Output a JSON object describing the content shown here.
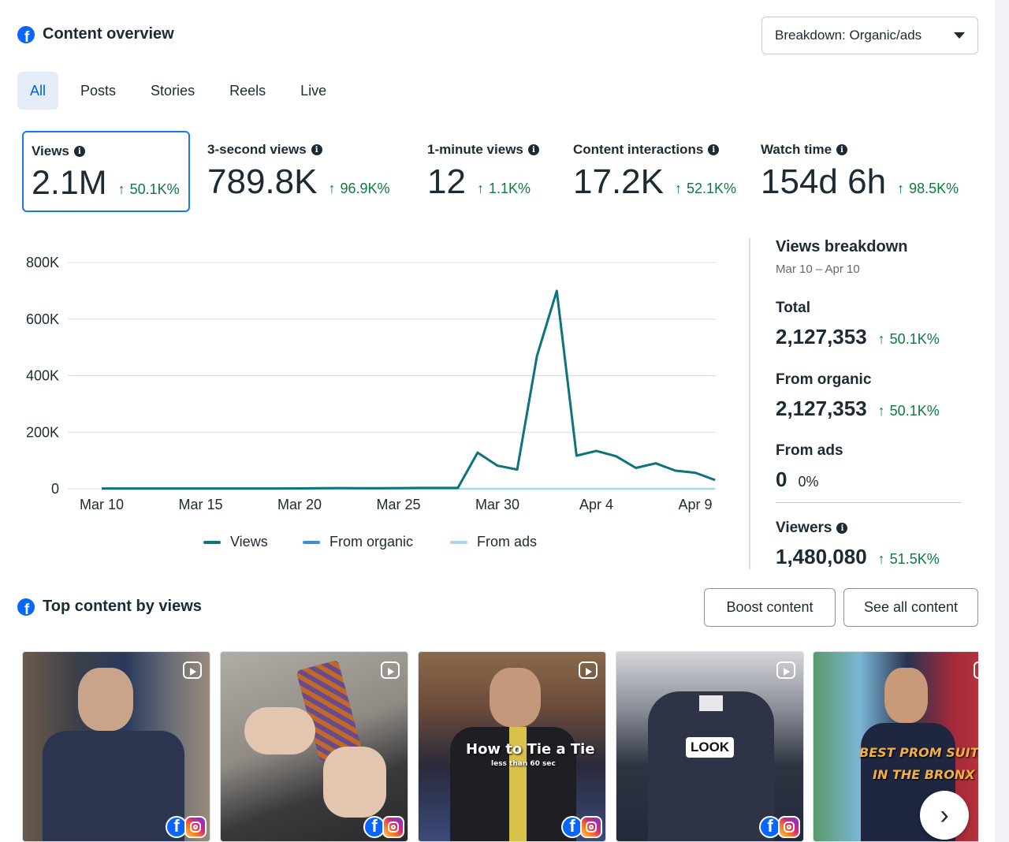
{
  "header": {
    "title": "Content overview",
    "icon": "facebook-icon"
  },
  "breakdown_dropdown": {
    "label": "Breakdown: Organic/ads"
  },
  "tabs": [
    {
      "label": "All",
      "active": true
    },
    {
      "label": "Posts",
      "active": false
    },
    {
      "label": "Stories",
      "active": false
    },
    {
      "label": "Reels",
      "active": false
    },
    {
      "label": "Live",
      "active": false
    }
  ],
  "metrics": [
    {
      "label": "Views",
      "value": "2.1M",
      "delta": "50.1K%",
      "selected": true
    },
    {
      "label": "3-second views",
      "value": "789.8K",
      "delta": "96.9K%"
    },
    {
      "label": "1-minute views",
      "value": "12",
      "delta": "1.1K%"
    },
    {
      "label": "Content interactions",
      "value": "17.2K",
      "delta": "52.1K%"
    },
    {
      "label": "Watch time",
      "value": "154d 6h",
      "delta": "98.5K%"
    }
  ],
  "colors": {
    "views": "#0e737b",
    "organic": "#3b8fd6",
    "ads": "#a8d8f0",
    "positive": "#0e7a3d",
    "accent": "#1877f2"
  },
  "chart_data": {
    "type": "line",
    "x_tick_labels": [
      "Mar 10",
      "Mar 15",
      "Mar 20",
      "Mar 25",
      "Mar 30",
      "Apr 4",
      "Apr 9"
    ],
    "y_tick_labels": [
      "0",
      "200K",
      "400K",
      "600K",
      "800K"
    ],
    "ylim": [
      0,
      800000
    ],
    "x": [
      "Mar 10",
      "Mar 11",
      "Mar 12",
      "Mar 13",
      "Mar 14",
      "Mar 15",
      "Mar 16",
      "Mar 17",
      "Mar 18",
      "Mar 19",
      "Mar 20",
      "Mar 21",
      "Mar 22",
      "Mar 23",
      "Mar 24",
      "Mar 25",
      "Mar 26",
      "Mar 27",
      "Mar 28",
      "Mar 29",
      "Mar 30",
      "Mar 31",
      "Apr 1",
      "Apr 2",
      "Apr 3",
      "Apr 4",
      "Apr 5",
      "Apr 6",
      "Apr 7",
      "Apr 8",
      "Apr 9",
      "Apr 10"
    ],
    "series": [
      {
        "name": "Views",
        "values": [
          1000,
          1000,
          1000,
          1000,
          1000,
          1000,
          1000,
          1000,
          1000,
          1000,
          1500,
          2000,
          2500,
          2000,
          2000,
          2500,
          3000,
          3000,
          3000,
          128000,
          82000,
          68000,
          470000,
          700000,
          117000,
          134000,
          115000,
          74000,
          90000,
          64000,
          57000,
          31000
        ]
      },
      {
        "name": "From organic",
        "values": [
          1000,
          1000,
          1000,
          1000,
          1000,
          1000,
          1000,
          1000,
          1000,
          1000,
          1500,
          2000,
          2500,
          2000,
          2000,
          2500,
          3000,
          3000,
          3000,
          128000,
          82000,
          68000,
          470000,
          700000,
          117000,
          134000,
          115000,
          74000,
          90000,
          64000,
          57000,
          31000
        ]
      },
      {
        "name": "From ads",
        "values": [
          0,
          0,
          0,
          0,
          0,
          0,
          0,
          0,
          0,
          0,
          0,
          0,
          0,
          0,
          0,
          0,
          0,
          0,
          0,
          0,
          0,
          0,
          0,
          0,
          0,
          0,
          0,
          0,
          0,
          0,
          0,
          0
        ]
      }
    ],
    "grid": true,
    "legend_position": "bottom"
  },
  "views_breakdown": {
    "title": "Views breakdown",
    "date_range": "Mar 10 – Apr 10",
    "total_label": "Total",
    "total_value": "2,127,353",
    "total_delta": "50.1K%",
    "organic_label": "From organic",
    "organic_value": "2,127,353",
    "organic_delta": "50.1K%",
    "ads_label": "From ads",
    "ads_value": "0",
    "ads_delta": "0%",
    "viewers_label": "Viewers",
    "viewers_value": "1,480,080",
    "viewers_delta": "51.5K%"
  },
  "top_content": {
    "title": "Top content by views",
    "boost_label": "Boost content",
    "see_all_label": "See all content",
    "thumbnails": [
      {
        "overlay": ""
      },
      {
        "overlay": ""
      },
      {
        "overlay": "How to Tie a Tie",
        "sub": "less than 60 sec"
      },
      {
        "overlay": "LOOK"
      },
      {
        "overlay": "BEST PROM SUITS",
        "sub": "IN THE BRONX"
      }
    ]
  }
}
